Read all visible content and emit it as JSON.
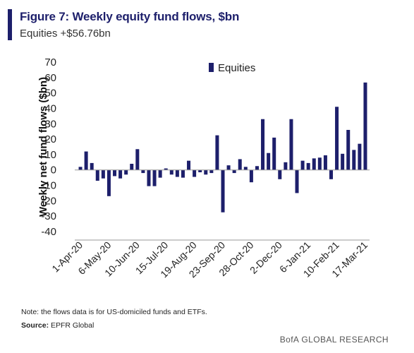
{
  "header": {
    "title": "Figure 7: Weekly equity fund flows, $bn",
    "subtitle": "Equities +$56.76bn"
  },
  "footer": {
    "note": "Note: the flows data is for US-domiciled funds and ETFs.",
    "source_label": "Source:",
    "source_value": "EPFR Global",
    "brand": "BofA GLOBAL RESEARCH"
  },
  "colors": {
    "bar": "#1d1f6b",
    "accent": "#1d1f6b",
    "axis": "#999999"
  },
  "chart_data": {
    "type": "bar",
    "ylabel": "Weekly net fund flows ($bn)",
    "xlabel": "",
    "ylim": [
      -40,
      70
    ],
    "yticks": [
      -40,
      -30,
      -20,
      -10,
      0,
      10,
      20,
      30,
      40,
      50,
      60,
      70
    ],
    "grid": false,
    "legend_position": "top-right",
    "xtick_labels": [
      "1-Apr-20",
      "6-May-20",
      "10-Jun-20",
      "15-Jul-20",
      "19-Aug-20",
      "23-Sep-20",
      "28-Oct-20",
      "2-Dec-20",
      "6-Jan-21",
      "10-Feb-21",
      "17-Mar-21"
    ],
    "xtick_step": 5,
    "series": [
      {
        "name": "Equities",
        "values": [
          2,
          12,
          4.5,
          -7,
          -5.5,
          -17,
          -4,
          -5.5,
          -3,
          4,
          13.5,
          -2,
          -10.5,
          -10.5,
          -5,
          1,
          -3,
          -4.5,
          -5,
          6,
          -4.5,
          -1.5,
          -3,
          -2,
          22.5,
          -27.5,
          3,
          -2,
          7,
          2,
          -8,
          2.5,
          33,
          11,
          21,
          -6,
          5,
          33,
          -15,
          6,
          4.5,
          7.5,
          8,
          9.5,
          -6,
          41,
          10.5,
          26,
          13,
          17,
          56.76
        ]
      }
    ]
  }
}
